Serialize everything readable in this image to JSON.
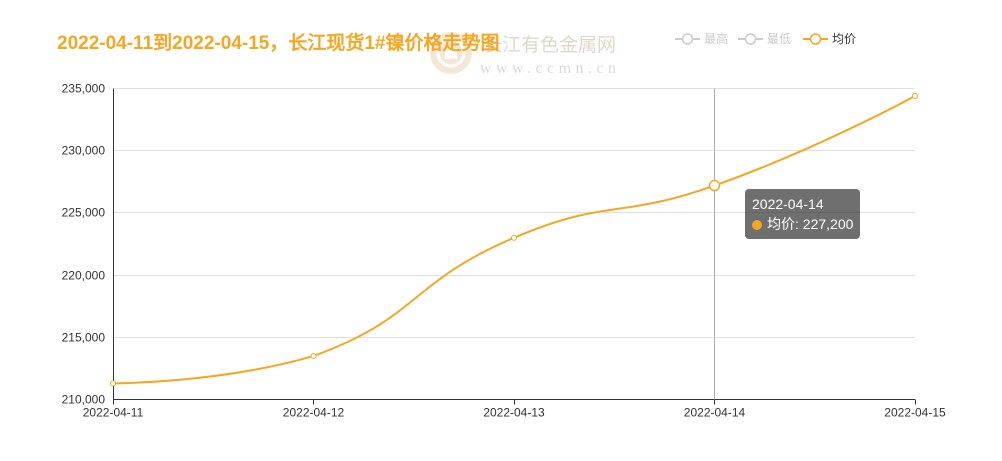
{
  "watermark": {
    "name": "长江有色金属网",
    "url": "www.ccmn.cn"
  },
  "colors": {
    "accent": "#f5a623",
    "inactive": "#cccccc",
    "legend_text": "#333333",
    "axis": "#333333",
    "grid": "#e0e0e0",
    "axis_pointer": "#aaaaaa",
    "tooltip_bg": "rgba(50,50,50,0.7)"
  },
  "tooltip": {
    "category": "2022-04-14",
    "text": "均价: 227,200"
  },
  "chart_data": {
    "type": "line",
    "title": "2022-04-11到2022-04-15，长江现货1#镍价格走势图",
    "categories": [
      "2022-04-11",
      "2022-04-12",
      "2022-04-13",
      "2022-04-14",
      "2022-04-15"
    ],
    "series": [
      {
        "name": "最高",
        "visible": false
      },
      {
        "name": "最低",
        "visible": false
      },
      {
        "name": "均价",
        "visible": true,
        "smooth": true,
        "values": [
          211300,
          213500,
          223000,
          227200,
          234400
        ]
      }
    ],
    "ylim": [
      210000,
      235000
    ],
    "yticks": [
      "210,000",
      "215,000",
      "220,000",
      "225,000",
      "230,000",
      "235,000"
    ],
    "grid": true,
    "legend_position": "top-right"
  }
}
